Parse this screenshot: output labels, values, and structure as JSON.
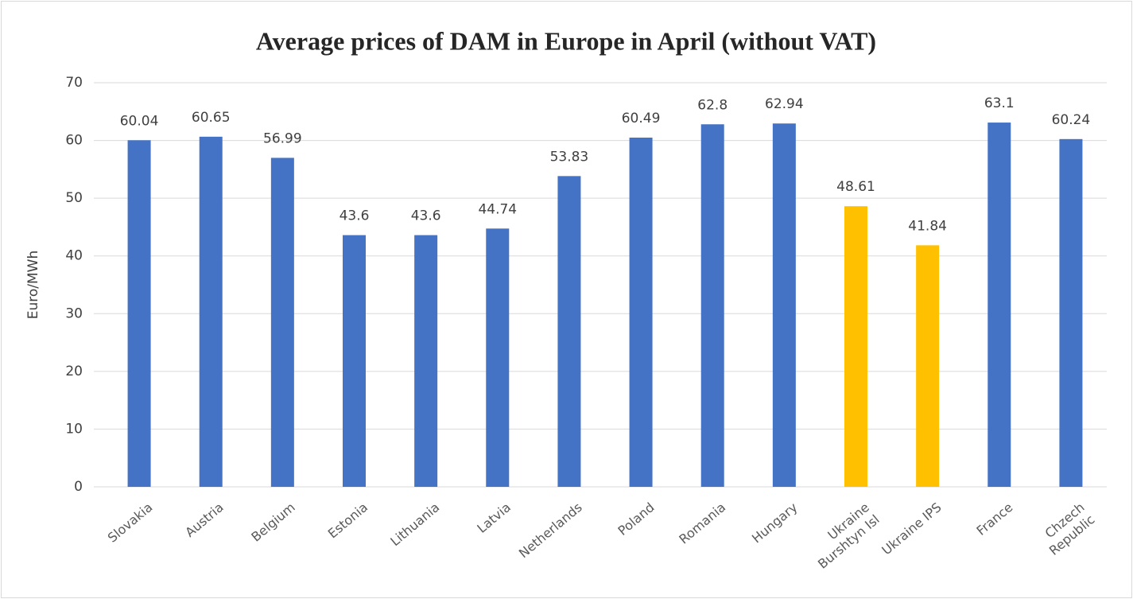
{
  "chart_data": {
    "type": "bar",
    "title": "Average prices of DAM in Europe in April (without VAT)",
    "y_label": "Euro/MWh",
    "categories": [
      "Slovakia",
      "Austria",
      "Belgium",
      "Estonia",
      "Lithuania",
      "Latvia",
      "Netherlands",
      "Poland",
      "Romania",
      "Hungary",
      "Ukraine\nBurshtyn Isl",
      "Ukraine IPS",
      "France",
      "Chzech\nRepublic"
    ],
    "values": [
      60.04,
      60.65,
      56.99,
      43.6,
      43.6,
      44.74,
      53.83,
      60.49,
      62.8,
      62.94,
      48.61,
      41.84,
      63.1,
      60.24
    ],
    "colors": [
      "#4472c4",
      "#4472c4",
      "#4472c4",
      "#4472c4",
      "#4472c4",
      "#4472c4",
      "#4472c4",
      "#4472c4",
      "#4472c4",
      "#4472c4",
      "#ffc000",
      "#ffc000",
      "#4472c4",
      "#4472c4"
    ],
    "ylim": [
      0,
      70
    ],
    "yticks": [
      0,
      10,
      20,
      30,
      40,
      50,
      60,
      70
    ],
    "grid": true
  }
}
